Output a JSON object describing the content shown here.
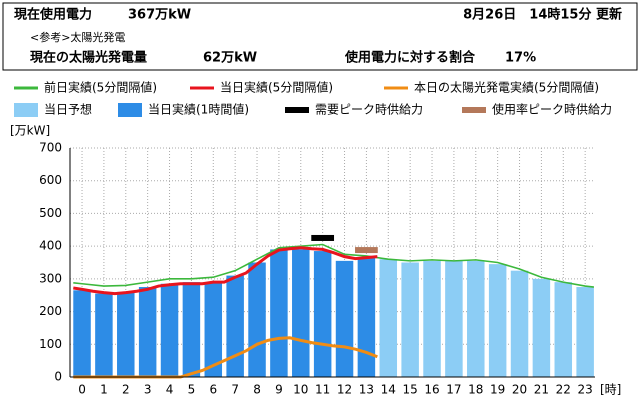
{
  "header": {
    "usage_label": "現在使用電力",
    "usage_value": "367万kW",
    "updated": "8月26日　14時15分 更新",
    "reference": "<参考>太陽光発電",
    "solar_label": "現在の太陽光発電量",
    "solar_value": "62万kW",
    "ratio_label": "使用電力に対する割合",
    "ratio_value": "17%"
  },
  "chart_data": {
    "type": "bar",
    "y_label": "[万kW]",
    "x_label": "[時]",
    "xlim": [
      -0.55,
      23.45
    ],
    "xticks": [
      0,
      1,
      2,
      3,
      4,
      5,
      6,
      7,
      8,
      9,
      10,
      11,
      12,
      13,
      14,
      15,
      16,
      17,
      18,
      19,
      20,
      21,
      22,
      23
    ],
    "ylim": [
      0,
      700
    ],
    "yticks": [
      0,
      100,
      200,
      300,
      400,
      500,
      600,
      700
    ],
    "grid": true,
    "series": [
      {
        "name": "前日実績(5分間隔値)",
        "type": "line",
        "color": "#3cb83c",
        "x": [
          -0.4,
          0,
          1,
          2,
          3,
          4,
          5,
          6,
          7,
          8,
          9,
          10,
          11,
          12,
          13,
          14,
          15,
          16,
          17,
          18,
          19,
          20,
          21,
          22,
          23,
          23.4
        ],
        "values": [
          288,
          285,
          278,
          280,
          290,
          300,
          300,
          305,
          325,
          360,
          395,
          400,
          405,
          375,
          370,
          360,
          355,
          358,
          355,
          358,
          350,
          330,
          305,
          290,
          278,
          275
        ]
      },
      {
        "name": "当日実績(5分間隔値)",
        "type": "line",
        "color": "#e8141e",
        "x": [
          -0.4,
          0,
          0.5,
          1,
          1.5,
          2,
          2.5,
          3,
          3.5,
          4,
          4.5,
          5,
          5.5,
          6,
          6.5,
          7,
          7.5,
          8,
          8.5,
          9,
          9.5,
          10,
          10.5,
          11,
          11.5,
          12,
          12.5,
          13,
          13.5
        ],
        "values": [
          272,
          268,
          262,
          258,
          255,
          258,
          262,
          268,
          278,
          282,
          285,
          285,
          285,
          290,
          290,
          305,
          318,
          345,
          370,
          388,
          392,
          395,
          392,
          390,
          380,
          368,
          362,
          365,
          368
        ]
      },
      {
        "name": "本日の太陽光発電実績(5分間隔値)",
        "type": "line",
        "color": "#f08c14",
        "x": [
          -0.4,
          0,
          0.5,
          1,
          1.5,
          2,
          2.5,
          3,
          3.5,
          4,
          4.5,
          5,
          5.5,
          6,
          6.5,
          7,
          7.5,
          8,
          8.5,
          9,
          9.5,
          10,
          10.5,
          11,
          11.5,
          12,
          12.5,
          13,
          13.5
        ],
        "values": [
          0,
          0,
          0,
          0,
          0,
          0,
          0,
          0,
          0,
          0,
          0,
          10,
          20,
          35,
          50,
          65,
          80,
          100,
          112,
          118,
          120,
          112,
          105,
          100,
          95,
          92,
          85,
          75,
          62
        ]
      },
      {
        "name": "当日予想",
        "type": "bar",
        "color": "#8ccdf5",
        "x": [
          14,
          15,
          16,
          17,
          18,
          19,
          20,
          21,
          22,
          23
        ],
        "values": [
          360,
          350,
          355,
          355,
          355,
          345,
          325,
          300,
          290,
          275
        ]
      },
      {
        "name": "当日実績(1時間値)",
        "type": "bar",
        "color": "#2d8ce6",
        "x": [
          0,
          1,
          2,
          3,
          4,
          5,
          6,
          7,
          8,
          9,
          10,
          11,
          12,
          13
        ],
        "values": [
          265,
          255,
          260,
          275,
          285,
          290,
          290,
          310,
          350,
          390,
          390,
          385,
          355,
          365
        ]
      },
      {
        "name": "需要ピーク時供給力",
        "type": "peak",
        "color": "#000000",
        "x": [
          11
        ],
        "values": [
          425
        ]
      },
      {
        "name": "使用率ピーク時供給力",
        "type": "peak",
        "color": "#b4785a",
        "x": [
          13
        ],
        "values": [
          388
        ]
      }
    ]
  }
}
